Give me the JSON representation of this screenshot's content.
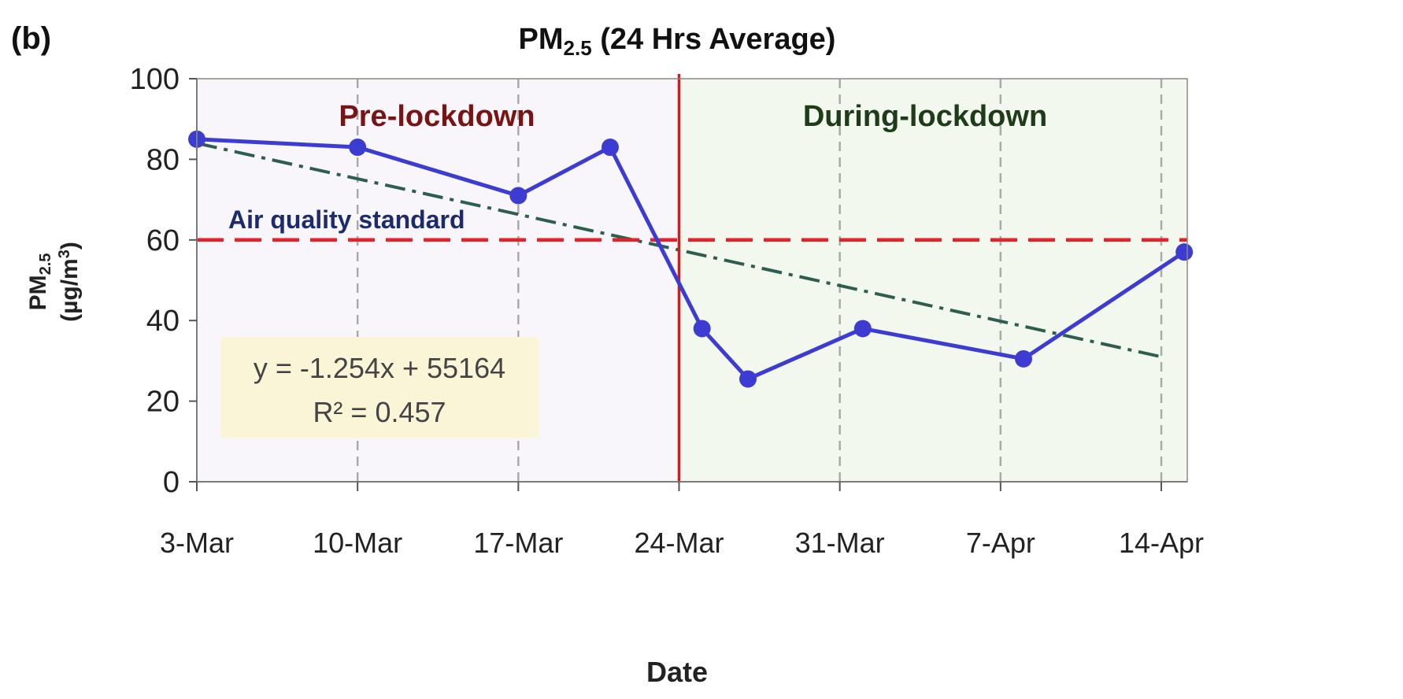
{
  "chart_data": {
    "type": "line",
    "panel_label": "(b)",
    "title_main": "PM",
    "title_sub": "2.5",
    "title_rest": " (24 Hrs Average)",
    "xlabel": "Date",
    "ylabel_main": "PM",
    "ylabel_sub": "2.5",
    "ylabel_unit_pre": "(µg/m",
    "ylabel_unit_sup": "3",
    "ylabel_unit_post": ")",
    "ylim": [
      0,
      100
    ],
    "yticks": [
      "0",
      "20",
      "40",
      "60",
      "80",
      "100"
    ],
    "xticks": [
      "3-Mar",
      "10-Mar",
      "17-Mar",
      "24-Mar",
      "31-Mar",
      "7-Apr",
      "14-Apr"
    ],
    "series": [
      {
        "x": [
          "3-Mar",
          "10-Mar",
          "17-Mar",
          "21-Mar",
          "25-Mar",
          "27-Mar",
          "1-Apr",
          "8-Apr",
          "15-Apr"
        ],
        "values": [
          85,
          83,
          71,
          83,
          38,
          25.5,
          38,
          30.5,
          57
        ],
        "color": "#3c3cd2"
      }
    ],
    "trendline": {
      "x": [
        "3-Mar",
        "14-Apr"
      ],
      "values": [
        84,
        31
      ],
      "color": "#2e5e50"
    },
    "equation_line1": "y = -1.254x + 55164",
    "equation_line2": "R² = 0.457",
    "standard_line": {
      "value": 60,
      "label": "Air quality standard",
      "color": "#e8202a"
    },
    "lockdown_date": "24-Mar",
    "lockdown_line_color": "#c81e1e",
    "regions": [
      {
        "label": "Pre-lockdown",
        "color": "#7a1414",
        "fill": "#f8f5fb"
      },
      {
        "label": "During-lockdown",
        "color": "#1e3c1a",
        "fill": "#f2f8ee"
      }
    ]
  }
}
